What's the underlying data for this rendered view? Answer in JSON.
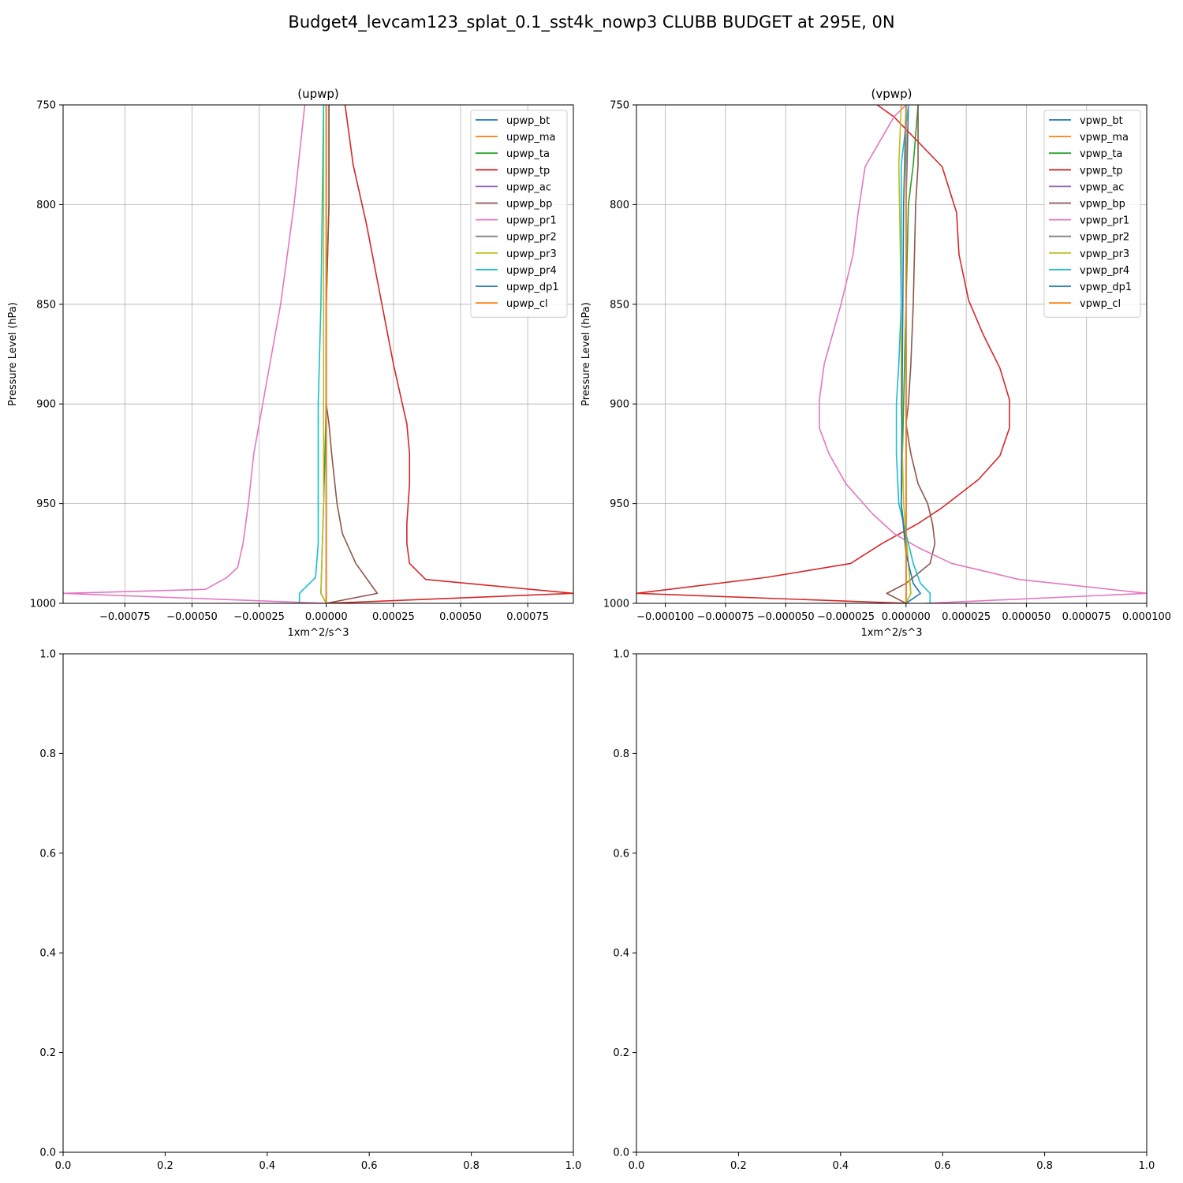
{
  "figure": {
    "suptitle": "Budget4_levcam123_splat_0.1_sst4k_nowp3 CLUBB BUDGET at 295E, 0N"
  },
  "colors": {
    "tab_blue": "#1f77b4",
    "tab_orange": "#ff7f0e",
    "tab_green": "#2ca02c",
    "tab_red": "#d62728",
    "tab_purple": "#9467bd",
    "tab_brown": "#8c564b",
    "tab_pink": "#e377c2",
    "tab_gray": "#7f7f7f",
    "tab_olive": "#bcbd22",
    "tab_cyan": "#17becf",
    "grid": "#b0b0b0"
  },
  "chart_data": [
    {
      "type": "line",
      "title": "(upwp)",
      "xlabel": "1xm^2/s^3",
      "ylabel": "Pressure Level (hPa)",
      "xlim": [
        -0.00098,
        0.00092
      ],
      "ylim": [
        1000,
        750
      ],
      "xticks": [
        -0.00075,
        -0.0005,
        -0.00025,
        0.0,
        0.00025,
        0.0005,
        0.00075
      ],
      "xtick_labels": [
        "−0.00075",
        "−0.00050",
        "−0.00025",
        "0.00000",
        "0.00025",
        "0.00050",
        "0.00075"
      ],
      "yticks": [
        750,
        800,
        850,
        900,
        950,
        1000
      ],
      "ytick_labels": [
        "750",
        "800",
        "850",
        "900",
        "950",
        "1000"
      ],
      "grid": true,
      "legend_position": "upper right",
      "series": [
        {
          "name": "upwp_bt",
          "color": "#1f77b4",
          "x": [
            0.0,
            0.0,
            0.0,
            0.0,
            0.0,
            0.0,
            0.0
          ],
          "y": [
            750,
            800,
            850,
            900,
            950,
            995,
            1000
          ]
        },
        {
          "name": "upwp_ma",
          "color": "#ff7f0e",
          "x": [
            0.0,
            0.0,
            0.0,
            0.0,
            0.0,
            0.0
          ],
          "y": [
            750,
            850,
            900,
            950,
            995,
            1000
          ]
        },
        {
          "name": "upwp_ta",
          "color": "#2ca02c",
          "x": [
            1e-05,
            1e-05,
            0.0,
            0.0,
            -1e-05,
            -2e-05,
            0.0
          ],
          "y": [
            750,
            800,
            850,
            900,
            950,
            995,
            1000
          ]
        },
        {
          "name": "upwp_tp",
          "color": "#d62728",
          "x": [
            7e-05,
            0.0001,
            0.00015,
            0.0002,
            0.00025,
            0.0003,
            0.00031,
            0.00031,
            0.0003,
            0.0003,
            0.00031,
            0.00037,
            0.00092,
            0.0
          ],
          "y": [
            750,
            780,
            810,
            845,
            880,
            910,
            925,
            940,
            960,
            970,
            980,
            988,
            995,
            1000
          ]
        },
        {
          "name": "upwp_ac",
          "color": "#9467bd",
          "x": [
            0.0,
            0.0,
            0.0,
            0.0,
            0.0,
            0.0
          ],
          "y": [
            750,
            850,
            900,
            950,
            995,
            1000
          ]
        },
        {
          "name": "upwp_bp",
          "color": "#8c564b",
          "x": [
            1e-05,
            1e-05,
            0.0,
            0.0,
            1e-05,
            2e-05,
            4e-05,
            6e-05,
            0.00011,
            0.00019,
            0.0
          ],
          "y": [
            750,
            800,
            850,
            900,
            910,
            925,
            950,
            965,
            980,
            995,
            1000
          ]
        },
        {
          "name": "upwp_pr1",
          "color": "#e377c2",
          "x": [
            -8e-05,
            -0.00012,
            -0.00017,
            -0.00021,
            -0.00025,
            -0.00027,
            -0.00029,
            -0.0003,
            -0.00031,
            -0.00033,
            -0.00037,
            -0.00045,
            -0.00098,
            0.0
          ],
          "y": [
            750,
            800,
            850,
            880,
            910,
            925,
            950,
            960,
            970,
            982,
            987,
            993,
            995,
            1000
          ]
        },
        {
          "name": "upwp_pr2",
          "color": "#7f7f7f",
          "x": [
            0.0,
            0.0,
            0.0,
            0.0,
            0.0
          ],
          "y": [
            750,
            850,
            950,
            995,
            1000
          ]
        },
        {
          "name": "upwp_pr3",
          "color": "#bcbd22",
          "x": [
            -1e-05,
            -1e-05,
            -1e-05,
            -1e-05,
            -2e-05,
            0.0
          ],
          "y": [
            750,
            850,
            900,
            950,
            995,
            1000
          ]
        },
        {
          "name": "upwp_pr4",
          "color": "#17becf",
          "x": [
            -1e-05,
            -2e-05,
            -3e-05,
            -3e-05,
            -3e-05,
            -4e-05,
            -0.0001,
            -0.0001
          ],
          "y": [
            750,
            850,
            900,
            950,
            970,
            987,
            995,
            1000
          ]
        },
        {
          "name": "upwp_dp1",
          "color": "#1f77b4",
          "x": [
            0.0,
            0.0,
            0.0,
            0.0,
            0.0
          ],
          "y": [
            750,
            850,
            950,
            995,
            1000
          ]
        },
        {
          "name": "upwp_cl",
          "color": "#ff7f0e",
          "x": [
            0.0,
            0.0,
            0.0,
            0.0,
            0.0
          ],
          "y": [
            750,
            850,
            950,
            995,
            1000
          ]
        }
      ]
    },
    {
      "type": "line",
      "title": "(vpwp)",
      "xlabel": "1xm^2/s^3",
      "ylabel": "Pressure Level (hPa)",
      "xlim": [
        -0.000112,
        0.0001
      ],
      "ylim": [
        1000,
        750
      ],
      "xticks": [
        -0.0001,
        -7.5e-05,
        -5e-05,
        -2.5e-05,
        0.0,
        2.5e-05,
        5e-05,
        7.5e-05,
        0.0001
      ],
      "xtick_labels": [
        "−0.000100",
        "−0.000075",
        "−0.000050",
        "−0.000025",
        "0.000000",
        "0.000025",
        "0.000050",
        "0.000075",
        "0.000100"
      ],
      "yticks": [
        750,
        800,
        850,
        900,
        950,
        1000
      ],
      "ytick_labels": [
        "750",
        "800",
        "850",
        "900",
        "950",
        "1000"
      ],
      "grid": true,
      "legend_position": "upper right",
      "series": [
        {
          "name": "vpwp_bt",
          "color": "#1f77b4",
          "x": [
            1e-06,
            0.0,
            0.0,
            0.0,
            0.0,
            0.0
          ],
          "y": [
            750,
            800,
            850,
            900,
            950,
            1000
          ]
        },
        {
          "name": "vpwp_ma",
          "color": "#ff7f0e",
          "x": [
            0.0,
            0.0,
            0.0,
            0.0,
            0.0,
            0.0
          ],
          "y": [
            750,
            800,
            850,
            900,
            950,
            1000
          ]
        },
        {
          "name": "vpwp_ta",
          "color": "#2ca02c",
          "x": [
            5e-06,
            3e-06,
            1e-06,
            0.0,
            -1e-06,
            -2e-06,
            1e-06,
            2e-06,
            0.0
          ],
          "y": [
            750,
            780,
            800,
            850,
            900,
            950,
            980,
            995,
            1000
          ]
        },
        {
          "name": "vpwp_tp",
          "color": "#d62728",
          "x": [
            -1.2e-05,
            -5e-06,
            1.5e-05,
            2.1e-05,
            2.2e-05,
            2.6e-05,
            3.2e-05,
            3.9e-05,
            4.3e-05,
            4.3e-05,
            3.9e-05,
            3e-05,
            1.5e-05,
            5e-06,
            -1e-05,
            -2.3e-05,
            -5.8e-05,
            -0.000112,
            0.0
          ],
          "y": [
            750,
            756,
            781,
            804,
            825,
            848,
            865,
            882,
            898,
            912,
            926,
            938,
            952,
            960,
            970,
            980,
            987,
            995,
            1000
          ]
        },
        {
          "name": "vpwp_ac",
          "color": "#9467bd",
          "x": [
            0.0,
            0.0,
            0.0,
            0.0,
            0.0
          ],
          "y": [
            750,
            850,
            950,
            995,
            1000
          ]
        },
        {
          "name": "vpwp_bp",
          "color": "#8c564b",
          "x": [
            5e-06,
            5e-06,
            4e-06,
            3e-06,
            2e-06,
            1e-06,
            0.0,
            2e-06,
            5e-06,
            9e-06,
            1.1e-05,
            1.2e-05,
            1e-05,
            0.0,
            -8e-06,
            0.0
          ],
          "y": [
            750,
            780,
            800,
            850,
            880,
            900,
            910,
            925,
            940,
            950,
            960,
            970,
            980,
            990,
            995,
            1000
          ]
        },
        {
          "name": "vpwp_pr1",
          "color": "#e377c2",
          "x": [
            0.0,
            -5e-06,
            -1.7e-05,
            -2e-05,
            -2.2e-05,
            -2.7e-05,
            -3.4e-05,
            -3.6e-05,
            -3.6e-05,
            -3.2e-05,
            -2.5e-05,
            -1.4e-05,
            -5e-06,
            5e-06,
            1.9e-05,
            4.7e-05,
            0.0001,
            8e-06
          ],
          "y": [
            750,
            756,
            781,
            805,
            825,
            850,
            880,
            898,
            912,
            925,
            940,
            955,
            965,
            972,
            980,
            988,
            995,
            1000
          ]
        },
        {
          "name": "vpwp_pr2",
          "color": "#7f7f7f",
          "x": [
            0.0,
            0.0,
            0.0,
            0.0,
            0.0
          ],
          "y": [
            750,
            850,
            950,
            995,
            1000
          ]
        },
        {
          "name": "vpwp_pr3",
          "color": "#bcbd22",
          "x": [
            -2e-06,
            -3e-06,
            -2e-06,
            -2e-06,
            -1e-06,
            2e-06,
            0.0
          ],
          "y": [
            750,
            780,
            850,
            900,
            950,
            995,
            1000
          ]
        },
        {
          "name": "vpwp_pr4",
          "color": "#17becf",
          "x": [
            1e-06,
            -2e-06,
            -2e-06,
            -3e-06,
            -4e-06,
            -4e-06,
            -3e-06,
            0.0,
            3e-06,
            6e-06,
            1e-05,
            1e-05
          ],
          "y": [
            750,
            780,
            850,
            880,
            900,
            925,
            950,
            965,
            980,
            990,
            995,
            1000
          ]
        },
        {
          "name": "vpwp_dp1",
          "color": "#1f77b4",
          "x": [
            0.0,
            -1e-06,
            -2e-06,
            0.0,
            3e-06,
            6e-06,
            0.0
          ],
          "y": [
            750,
            800,
            950,
            975,
            990,
            995,
            1000
          ]
        },
        {
          "name": "vpwp_cl",
          "color": "#ff7f0e",
          "x": [
            0.0,
            0.0,
            0.0,
            0.0,
            0.0
          ],
          "y": [
            750,
            850,
            950,
            995,
            1000
          ]
        }
      ]
    },
    {
      "type": "line",
      "title": "",
      "xlabel": "",
      "ylabel": "",
      "xlim": [
        0,
        1
      ],
      "ylim": [
        0,
        1
      ],
      "xticks": [
        0.0,
        0.2,
        0.4,
        0.6,
        0.8,
        1.0
      ],
      "xtick_labels": [
        "0.0",
        "0.2",
        "0.4",
        "0.6",
        "0.8",
        "1.0"
      ],
      "yticks": [
        0.0,
        0.2,
        0.4,
        0.6,
        0.8,
        1.0
      ],
      "ytick_labels": [
        "0.0",
        "0.2",
        "0.4",
        "0.6",
        "0.8",
        "1.0"
      ],
      "grid": false,
      "series": []
    },
    {
      "type": "line",
      "title": "",
      "xlabel": "",
      "ylabel": "",
      "xlim": [
        0,
        1
      ],
      "ylim": [
        0,
        1
      ],
      "xticks": [
        0.0,
        0.2,
        0.4,
        0.6,
        0.8,
        1.0
      ],
      "xtick_labels": [
        "0.0",
        "0.2",
        "0.4",
        "0.6",
        "0.8",
        "1.0"
      ],
      "yticks": [
        0.0,
        0.2,
        0.4,
        0.6,
        0.8,
        1.0
      ],
      "ytick_labels": [
        "0.0",
        "0.2",
        "0.4",
        "0.6",
        "0.8",
        "1.0"
      ],
      "grid": false,
      "series": []
    }
  ]
}
